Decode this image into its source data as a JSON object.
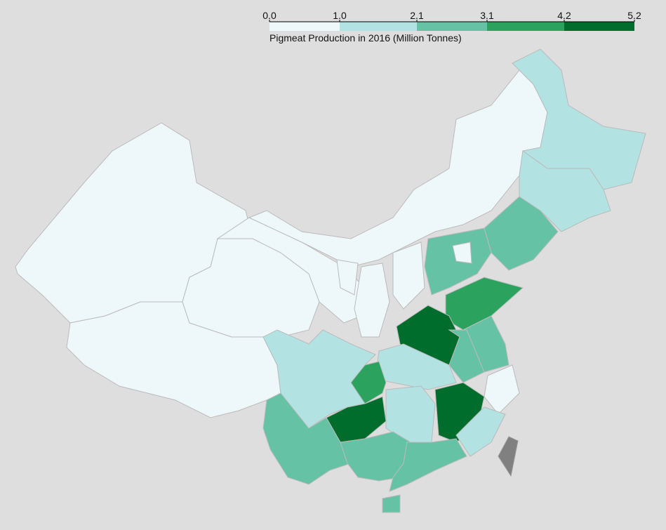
{
  "chart_data": {
    "type": "choropleth",
    "title": "Pigmeat Production in 2016 (Million Tonnes)",
    "ticks": [
      {
        "value": 0,
        "label": "0.0"
      },
      {
        "value": 1,
        "label": "1.0"
      },
      2.1,
      3.1,
      4.2,
      5.2
    ],
    "colors": [
      "#eef8fa",
      "#b2e2e2",
      "#66c2a4",
      "#2ca25f",
      "#006d2c"
    ],
    "values": [
      0.7,
      0.2,
      0.1,
      0.5,
      0.7,
      0.1,
      0.9,
      0.8,
      1.3,
      1.2,
      2.2,
      2.5,
      0.3,
      3.4,
      4.5,
      2.2,
      2.8,
      0.9,
      1.4,
      3.4,
      1.5,
      4.8,
      1.7,
      4.5,
      2.5,
      2.5,
      2.6,
      2.4,
      1.1
    ]
  }
}
